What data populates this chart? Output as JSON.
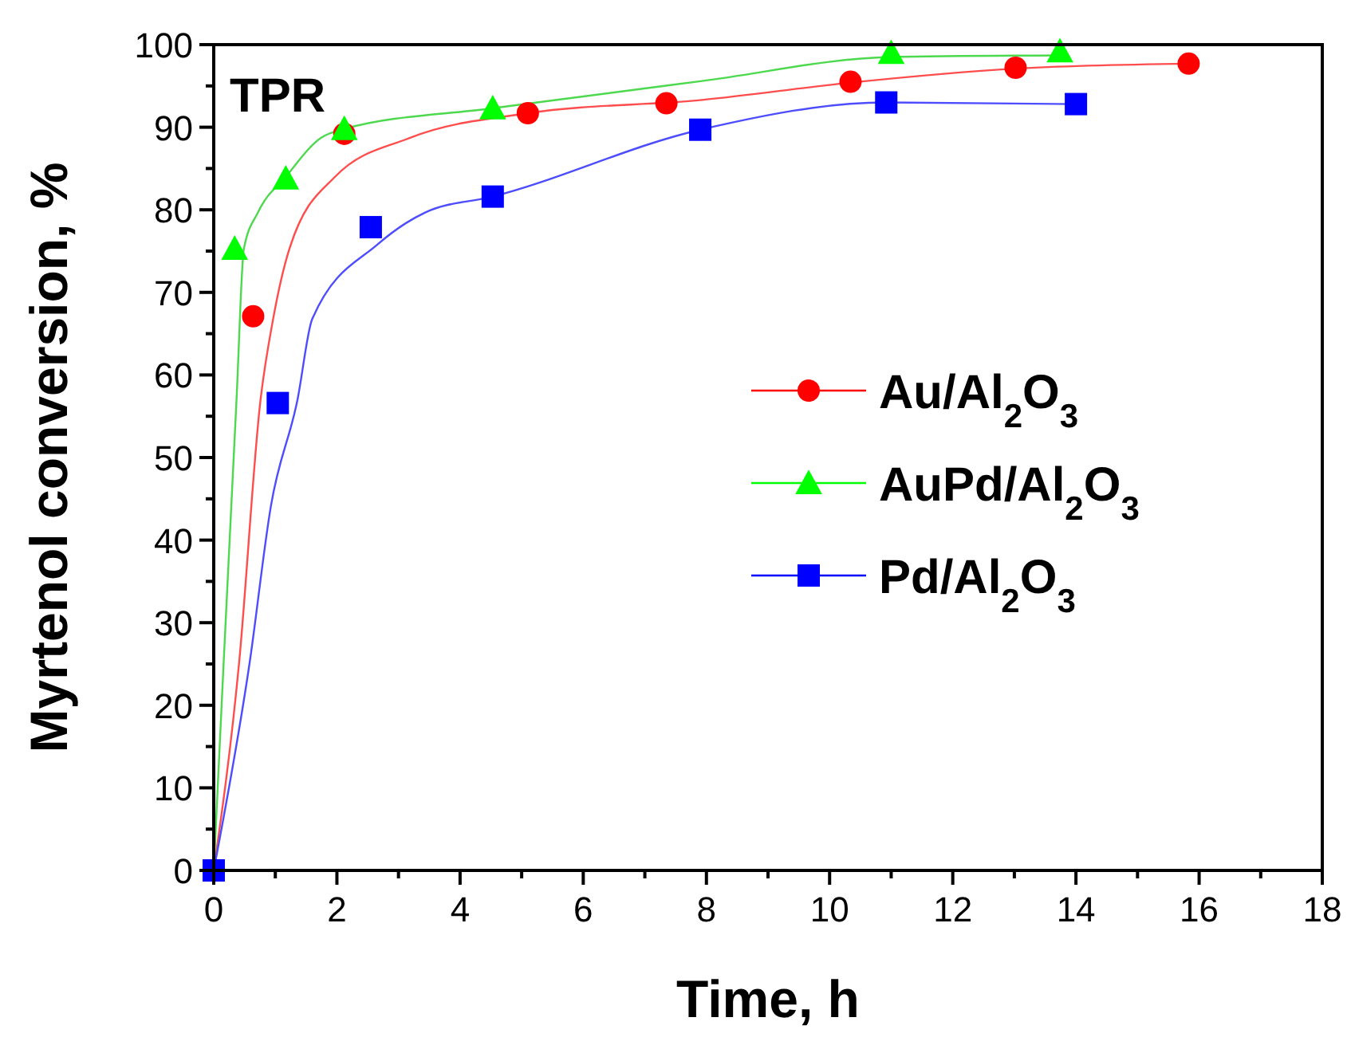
{
  "chart_data": {
    "type": "scatter",
    "xlabel": "Time, h",
    "ylabel": "Myrtenol conversion, %",
    "annotations": [
      "TPR"
    ],
    "xlim": [
      0,
      18
    ],
    "ylim": [
      0,
      100
    ],
    "xticks": [
      0,
      {
        "value": 1,
        "label": null
      },
      2,
      {
        "value": 3,
        "label": null
      },
      4,
      {
        "value": 5,
        "label": null
      },
      6,
      {
        "value": 7,
        "label": null
      },
      8,
      {
        "value": 9,
        "label": null
      },
      10,
      {
        "value": 11,
        "label": null
      },
      12,
      {
        "value": 13,
        "label": null
      },
      14,
      {
        "value": 15,
        "label": null
      },
      16,
      {
        "value": 17,
        "label": null
      },
      18
    ],
    "yticks": [
      0,
      {
        "value": 5,
        "label": null
      },
      10,
      {
        "value": 15,
        "label": null
      },
      20,
      {
        "value": 25,
        "label": null
      },
      30,
      {
        "value": 35,
        "label": null
      },
      40,
      {
        "value": 45,
        "label": null
      },
      50,
      {
        "value": 55,
        "label": null
      },
      60,
      {
        "value": 65,
        "label": null
      },
      70,
      {
        "value": 75,
        "label": null
      },
      80,
      {
        "value": 85,
        "label": null
      },
      90,
      {
        "value": 95,
        "label": null
      },
      100
    ],
    "legend": "right",
    "grid": false,
    "series": [
      {
        "type": "line",
        "color": "#ff4d4d",
        "x": [
          0,
          0.41,
          0.76,
          0.97,
          1.23,
          1.97,
          3.18,
          5.1,
          7.93,
          10.34,
          13.02,
          15.83
        ],
        "values": [
          0,
          25,
          57,
          67,
          75.3,
          84,
          88.7,
          91.7,
          93.3,
          95.4,
          97.1,
          97.7
        ]
      },
      {
        "type": "line",
        "color": "#4dd94d",
        "x": [
          0,
          0.16,
          0.37,
          0.49,
          0.72,
          1.17,
          1.74,
          2.12,
          4.53,
          7.93,
          11.0,
          13.74
        ],
        "values": [
          0,
          25,
          57,
          75.3,
          79.7,
          84,
          88.7,
          89.8,
          92.3,
          95.6,
          98.5,
          98.7
        ]
      },
      {
        "type": "line",
        "color": "#4d4dff",
        "x": [
          0,
          0.58,
          0.93,
          1.36,
          1.6,
          2.66,
          3.44,
          4.53,
          7.9,
          10.92,
          14.0
        ],
        "values": [
          0,
          25,
          44.2,
          57,
          66.8,
          75.8,
          79.7,
          81.6,
          89.7,
          93,
          92.8
        ]
      },
      {
        "name": "Au/Al$_{2}$O$_{3}$",
        "color": "#ff0000",
        "marker": "circle",
        "x": [
          0.64,
          2.12,
          5.1,
          7.35,
          10.34,
          13.02,
          15.83
        ],
        "values": [
          67.1,
          89.2,
          91.7,
          92.9,
          95.5,
          97.2,
          97.7
        ]
      },
      {
        "name": "AuPd/Al$_{2}$O$_{3}$",
        "color": "#00ff00",
        "marker": "triangle",
        "x": [
          0.34,
          1.17,
          2.12,
          4.53,
          11.0,
          13.74
        ],
        "values": [
          75.3,
          83.8,
          89.8,
          92.3,
          99,
          99.2
        ]
      },
      {
        "name": "Pd/Al$_{2}$O$_{3}$",
        "color": "#0000ff",
        "marker": "square",
        "x": [
          0,
          1.04,
          2.55,
          4.53,
          7.9,
          10.92,
          14.0
        ],
        "values": [
          0,
          56.6,
          77.9,
          81.6,
          89.7,
          93,
          92.8
        ]
      }
    ]
  }
}
